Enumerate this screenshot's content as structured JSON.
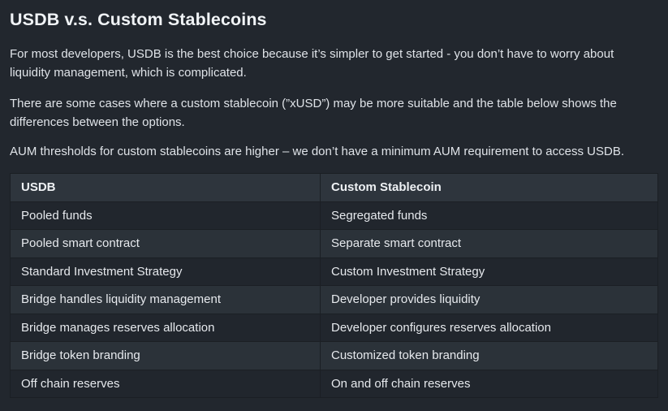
{
  "title": "USDB v.s. Custom Stablecoins",
  "paragraphs": [
    "For most developers, USDB is the best choice because it’s simpler to get started - you don’t have to worry about liquidity management, which is complicated.",
    "There are some cases where a custom stablecoin (”xUSD”) may be more suitable and the table below shows the differences between the options.",
    "AUM thresholds for custom stablecoins are higher – we don’t have a minimum AUM requirement to access USDB."
  ],
  "table": {
    "headers": [
      "USDB",
      "Custom Stablecoin"
    ],
    "rows": [
      [
        "Pooled funds",
        "Segregated funds"
      ],
      [
        "Pooled smart contract",
        "Separate smart contract"
      ],
      [
        "Standard Investment Strategy",
        "Custom Investment Strategy"
      ],
      [
        "Bridge handles liquidity management",
        "Developer provides liquidity"
      ],
      [
        "Bridge manages reserves allocation",
        "Developer configures reserves allocation"
      ],
      [
        "Bridge token branding",
        "Customized token branding"
      ],
      [
        "Off chain reserves",
        "On and off chain reserves"
      ]
    ]
  }
}
